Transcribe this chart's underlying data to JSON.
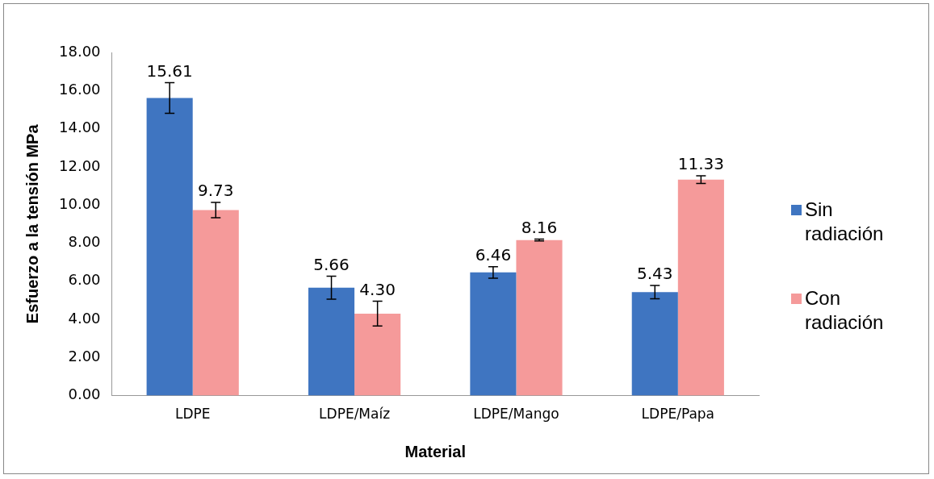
{
  "chart_data": {
    "type": "bar",
    "xlabel": "Material",
    "ylabel": "Esfuerzo a la tensión MPa",
    "categories": [
      "LDPE",
      "LDPE/Maíz",
      "LDPE/Mango",
      "LDPE/Papa"
    ],
    "series": [
      {
        "name": "Sin radiación",
        "color": "#3f75c1",
        "values": [
          15.61,
          5.66,
          6.46,
          5.43
        ],
        "value_labels": [
          "15.61",
          "5.66",
          "6.46",
          "5.43"
        ],
        "errors": [
          0.8,
          0.6,
          0.3,
          0.35
        ]
      },
      {
        "name": "Con radiación",
        "color": "#f59a9a",
        "values": [
          9.73,
          4.3,
          8.16,
          11.33
        ],
        "value_labels": [
          "9.73",
          "4.30",
          "8.16",
          "11.33"
        ],
        "errors": [
          0.4,
          0.65,
          0.05,
          0.2
        ]
      }
    ],
    "ylim": [
      0,
      18
    ],
    "yticks": [
      {
        "value": 0,
        "label": "0.00"
      },
      {
        "value": 2,
        "label": "2.00"
      },
      {
        "value": 4,
        "label": "4.00"
      },
      {
        "value": 6,
        "label": "6.00"
      },
      {
        "value": 8,
        "label": "8.00"
      },
      {
        "value": 10,
        "label": "10.00"
      },
      {
        "value": 12,
        "label": "12.00"
      },
      {
        "value": 14,
        "label": "14.00"
      },
      {
        "value": 16,
        "label": "16.00"
      },
      {
        "value": 18,
        "label": "18.00"
      }
    ],
    "grid": false,
    "legend": "right"
  }
}
